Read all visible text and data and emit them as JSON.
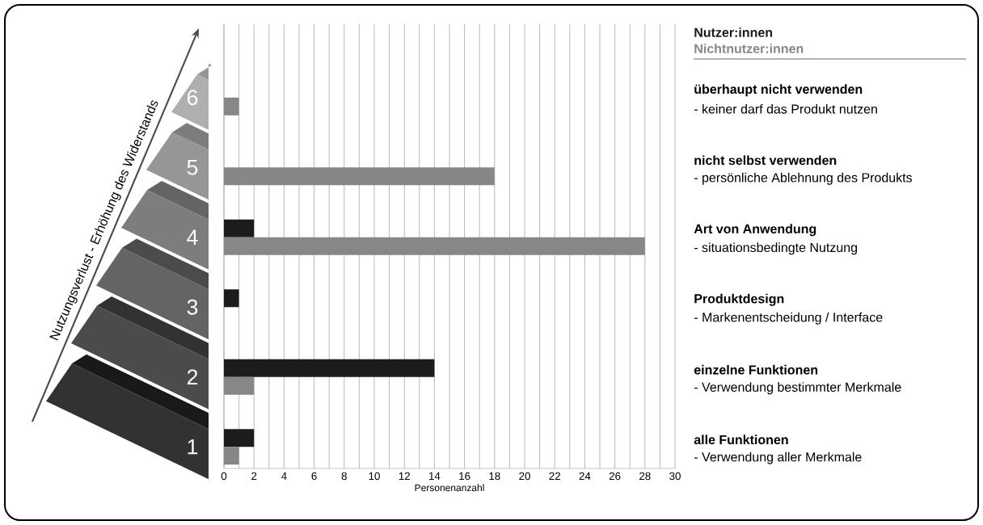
{
  "chart_data": {
    "type": "bar",
    "orientation": "horizontal",
    "ylabel": "Nutzungsverlust - Erhöhung des Widerstands",
    "xlabel": "Personenanzahl",
    "categories": [
      "6",
      "5",
      "4",
      "3",
      "2",
      "1"
    ],
    "series": [
      {
        "name": "Nutzer:innen",
        "color": "#1c1c1c",
        "values": [
          0,
          0,
          2,
          1,
          14,
          2
        ]
      },
      {
        "name": "Nichtnutzer:innen",
        "color": "#878787",
        "values": [
          1,
          18,
          28,
          0,
          2,
          1
        ]
      }
    ],
    "xlim": [
      0,
      30
    ],
    "xticks": [
      0,
      {
        "value": 1,
        "label": null
      },
      2,
      {
        "value": 3,
        "label": null
      },
      4,
      {
        "value": 5,
        "label": null
      },
      6,
      {
        "value": 7,
        "label": null
      },
      8,
      {
        "value": 9,
        "label": null
      },
      10,
      {
        "value": 11,
        "label": null
      },
      12,
      {
        "value": 13,
        "label": null
      },
      14,
      {
        "value": 15,
        "label": null
      },
      16,
      {
        "value": 17,
        "label": null
      },
      18,
      {
        "value": 19,
        "label": null
      },
      20,
      {
        "value": 21,
        "label": null
      },
      22,
      {
        "value": 23,
        "label": null
      },
      24,
      {
        "value": 25,
        "label": null
      },
      26,
      {
        "value": 27,
        "label": null
      },
      28,
      {
        "value": 29,
        "label": null
      },
      30
    ],
    "grid": "x",
    "legend": "top right",
    "annotations": [
      "überhaupt nicht verwenden",
      "- keiner darf das Produkt nutzen",
      "nicht selbst verwenden",
      "- persönliche Ablehnung des Produkts",
      "Art von Anwendung",
      "- situationsbedingte Nutzung",
      "Produktdesign",
      "- Markenentscheidung / Interface",
      "einzelne Funktionen",
      "- Verwendung bestimmter Merkmale",
      "alle Funktionen",
      "- Verwendung aller Merkmale"
    ]
  }
}
